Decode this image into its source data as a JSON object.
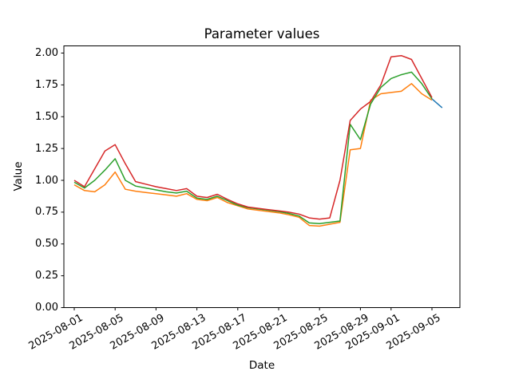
{
  "figure": {
    "background": "#ffffff",
    "frame_color": "#000000"
  },
  "chart_data": {
    "type": "line",
    "title": "Parameter values",
    "xlabel": "Date",
    "ylabel": "Value",
    "ylim": [
      0.0,
      2.0
    ],
    "grid": false,
    "legend": "none",
    "ytick_labels": [
      "0.00",
      "0.25",
      "0.50",
      "0.75",
      "1.00",
      "1.25",
      "1.50",
      "1.75",
      "2.00"
    ],
    "x_dates": [
      "2025-08-01",
      "2025-08-02",
      "2025-08-03",
      "2025-08-04",
      "2025-08-05",
      "2025-08-06",
      "2025-08-07",
      "2025-08-08",
      "2025-08-09",
      "2025-08-10",
      "2025-08-11",
      "2025-08-12",
      "2025-08-13",
      "2025-08-14",
      "2025-08-15",
      "2025-08-16",
      "2025-08-17",
      "2025-08-18",
      "2025-08-19",
      "2025-08-20",
      "2025-08-21",
      "2025-08-22",
      "2025-08-23",
      "2025-08-24",
      "2025-08-25",
      "2025-08-26",
      "2025-08-27",
      "2025-08-28",
      "2025-08-29",
      "2025-08-30",
      "2025-08-31",
      "2025-09-01",
      "2025-09-02",
      "2025-09-03",
      "2025-09-04",
      "2025-09-05",
      "2025-09-06"
    ],
    "xtick_dates": [
      "2025-08-01",
      "2025-08-05",
      "2025-08-09",
      "2025-08-13",
      "2025-08-17",
      "2025-08-21",
      "2025-08-25",
      "2025-08-29",
      "2025-09-01",
      "2025-09-05"
    ],
    "series": [
      {
        "name": "series-blue",
        "color": "#1f77b4",
        "start_index": 35,
        "values": [
          1.64,
          1.57
        ]
      },
      {
        "name": "series-orange",
        "color": "#ff7f0e",
        "start_index": 0,
        "values": [
          0.965,
          0.92,
          0.91,
          0.965,
          1.065,
          0.93,
          0.915,
          0.905,
          0.895,
          0.885,
          0.875,
          0.895,
          0.85,
          0.84,
          0.865,
          0.825,
          0.8,
          0.775,
          0.765,
          0.755,
          0.745,
          0.73,
          0.71,
          0.645,
          0.64,
          0.655,
          0.67,
          1.24,
          1.25,
          1.63,
          1.68,
          1.69,
          1.7,
          1.76,
          1.68,
          1.63
        ]
      },
      {
        "name": "series-green",
        "color": "#2ca02c",
        "start_index": 0,
        "values": [
          0.985,
          0.94,
          1.0,
          1.08,
          1.17,
          1.0,
          0.955,
          0.94,
          0.925,
          0.91,
          0.9,
          0.915,
          0.86,
          0.85,
          0.875,
          0.84,
          0.805,
          0.785,
          0.775,
          0.765,
          0.755,
          0.74,
          0.72,
          0.665,
          0.66,
          0.67,
          0.68,
          1.44,
          1.32,
          1.6,
          1.73,
          1.8,
          1.83,
          1.85,
          1.76,
          1.64
        ]
      },
      {
        "name": "series-red",
        "color": "#d62728",
        "start_index": 0,
        "values": [
          1.0,
          0.95,
          1.09,
          1.23,
          1.28,
          1.13,
          0.99,
          0.97,
          0.95,
          0.935,
          0.92,
          0.935,
          0.875,
          0.865,
          0.89,
          0.85,
          0.815,
          0.79,
          0.78,
          0.77,
          0.76,
          0.75,
          0.735,
          0.705,
          0.695,
          0.705,
          1.0,
          1.47,
          1.56,
          1.62,
          1.75,
          1.97,
          1.98,
          1.95,
          1.8,
          1.65
        ]
      }
    ]
  }
}
